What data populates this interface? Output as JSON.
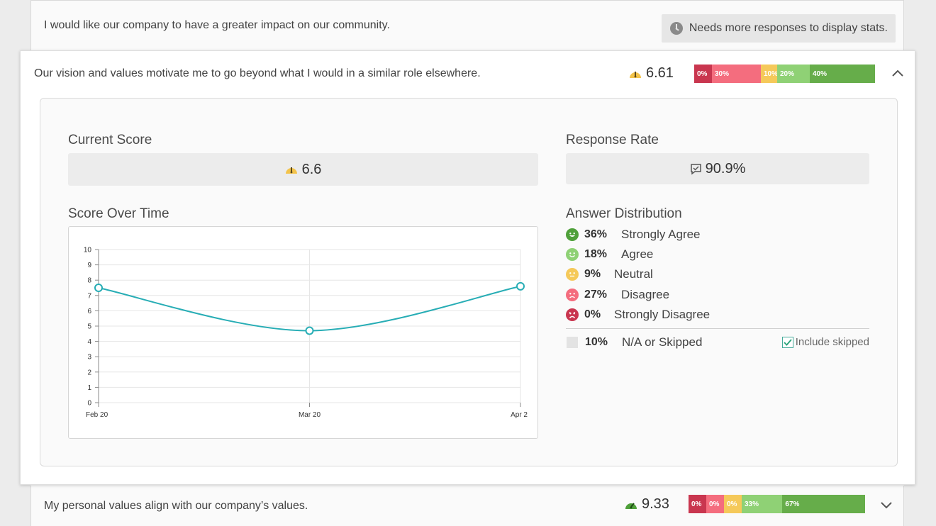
{
  "top_question": {
    "text": "I would like our company to have a greater impact on our community.",
    "notice": "Needs more responses to display stats.",
    "notice_icon": "clock-icon"
  },
  "expanded_question": {
    "text": "Our vision and values motivate me to go beyond what I would in a similar role elsewhere.",
    "score": "6.61",
    "score_icon": "gauge-mid-icon",
    "distribution": [
      {
        "label": "0%",
        "pct": 0,
        "color": "#c9364f"
      },
      {
        "label": "30%",
        "pct": 30,
        "color": "#f46d7e"
      },
      {
        "label": "10%",
        "pct": 10,
        "color": "#f5c95a"
      },
      {
        "label": "20%",
        "pct": 20,
        "color": "#8fd175"
      },
      {
        "label": "40%",
        "pct": 40,
        "color": "#66ad4a"
      }
    ],
    "collapse_icon": "chevron-up-icon",
    "current_score_label": "Current Score",
    "current_score_value": "6.6",
    "response_rate_label": "Response Rate",
    "response_rate_value": "90.9%",
    "response_rate_icon": "comment-check-icon",
    "score_over_time_label": "Score Over Time",
    "answer_distribution_label": "Answer Distribution",
    "answers": [
      {
        "pct": "36%",
        "label": "Strongly Agree",
        "icon": "face-very-happy-icon",
        "color": "#4fa03a"
      },
      {
        "pct": "18%",
        "label": "Agree",
        "icon": "face-happy-icon",
        "color": "#8fd175"
      },
      {
        "pct": "9%",
        "label": "Neutral",
        "icon": "face-neutral-icon",
        "color": "#f5c95a"
      },
      {
        "pct": "27%",
        "label": "Disagree",
        "icon": "face-sad-icon",
        "color": "#f46d7e"
      },
      {
        "pct": "0%",
        "label": "Strongly Disagree",
        "icon": "face-very-sad-icon",
        "color": "#c9364f"
      }
    ],
    "skipped": {
      "pct": "10%",
      "label": "N/A or Skipped"
    },
    "include_skipped_label": "Include skipped",
    "include_skipped_checked": true
  },
  "chart_data": {
    "type": "line",
    "categories": [
      "Feb 20",
      "Mar 20",
      "Apr 2"
    ],
    "series": [
      {
        "values": [
          7.5,
          4.7,
          7.6
        ]
      }
    ],
    "yticks": [
      "0",
      "1",
      "2",
      "3",
      "4",
      "5",
      "6",
      "7",
      "8",
      "9",
      "10"
    ],
    "ylim": [
      0,
      10
    ],
    "grid": true,
    "line_color": "#27adb5"
  },
  "bottom_question": {
    "text": "My personal values align with our company’s values.",
    "score": "9.33",
    "score_icon": "gauge-high-icon",
    "distribution": [
      {
        "label": "0%",
        "pct": 0,
        "color": "#c9364f"
      },
      {
        "label": "0%",
        "pct": 0,
        "color": "#f46d7e"
      },
      {
        "label": "0%",
        "pct": 0,
        "color": "#f5c95a"
      },
      {
        "label": "33%",
        "pct": 33,
        "color": "#8fd175"
      },
      {
        "label": "67%",
        "pct": 67,
        "color": "#66ad4a"
      }
    ],
    "expand_icon": "chevron-down-icon"
  }
}
